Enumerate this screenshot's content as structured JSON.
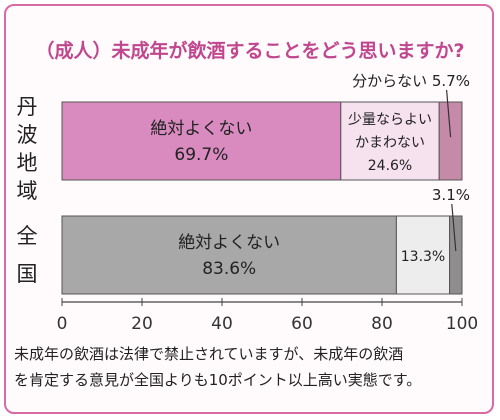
{
  "title": "（成人）未成年が飲酒することをどう思いますか?",
  "rows": [
    {
      "label": "丹波地域",
      "chars": [
        "丹",
        "波",
        "地",
        "域"
      ]
    },
    {
      "label": "全国",
      "chars": [
        "全",
        "国"
      ]
    }
  ],
  "note_lines": [
    "未成年の飲酒は法律で禁止されていますが、未成年の飲酒",
    "を肯定する意見が全国よりも10ポイント以上高い実態です。"
  ],
  "colors": {
    "accent": "#c0478e",
    "frame": "#d86aa6",
    "tanba_main": "#d98bc0",
    "tanba_second": "#f6e1ee",
    "tanba_third": "#c58aa8",
    "national_main": "#a8a8a8",
    "national_second": "#ededed",
    "national_third": "#8e8e8e"
  },
  "chart_data": {
    "type": "bar",
    "orientation": "horizontal",
    "stacked": true,
    "categories": [
      "丹波地域",
      "全国"
    ],
    "xlim": [
      0,
      100
    ],
    "xticks": [
      0,
      20,
      40,
      60,
      80,
      100
    ],
    "grid": false,
    "series": [
      {
        "name": "絶対よくない",
        "values": [
          69.7,
          83.6
        ]
      },
      {
        "name": "少量ならよい かまわない",
        "values": [
          24.6,
          13.3
        ]
      },
      {
        "name": "分からない",
        "values": [
          5.7,
          3.1
        ]
      }
    ],
    "bar_labels": [
      [
        {
          "lines": [
            "絶対よくない",
            "69.7%"
          ],
          "placement": "inside"
        },
        {
          "lines": [
            "少量ならよい",
            "かまわない",
            "24.6%"
          ],
          "placement": "inside"
        },
        {
          "lines": [
            "分からない 5.7%"
          ],
          "placement": "above"
        }
      ],
      [
        {
          "lines": [
            "絶対よくない",
            "83.6%"
          ],
          "placement": "inside"
        },
        {
          "lines": [
            "13.3%"
          ],
          "placement": "inside"
        },
        {
          "lines": [
            "3.1%"
          ],
          "placement": "above"
        }
      ]
    ]
  }
}
